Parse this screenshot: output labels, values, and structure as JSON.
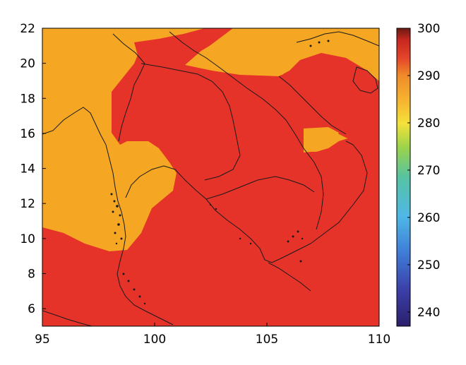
{
  "map": {
    "x_axis": {
      "min": 95,
      "max": 110,
      "ticks": [
        95,
        100,
        105,
        110
      ]
    },
    "y_axis": {
      "min": 5,
      "max": 22,
      "ticks": [
        6,
        8,
        10,
        12,
        14,
        16,
        18,
        20,
        22
      ]
    },
    "field_colors": {
      "high": "#e5332a",
      "mid": "#f5a623"
    }
  },
  "colorbar": {
    "min": 237,
    "max": 300,
    "ticks": [
      240,
      250,
      260,
      270,
      280,
      290,
      300
    ],
    "colormap": "jet"
  }
}
